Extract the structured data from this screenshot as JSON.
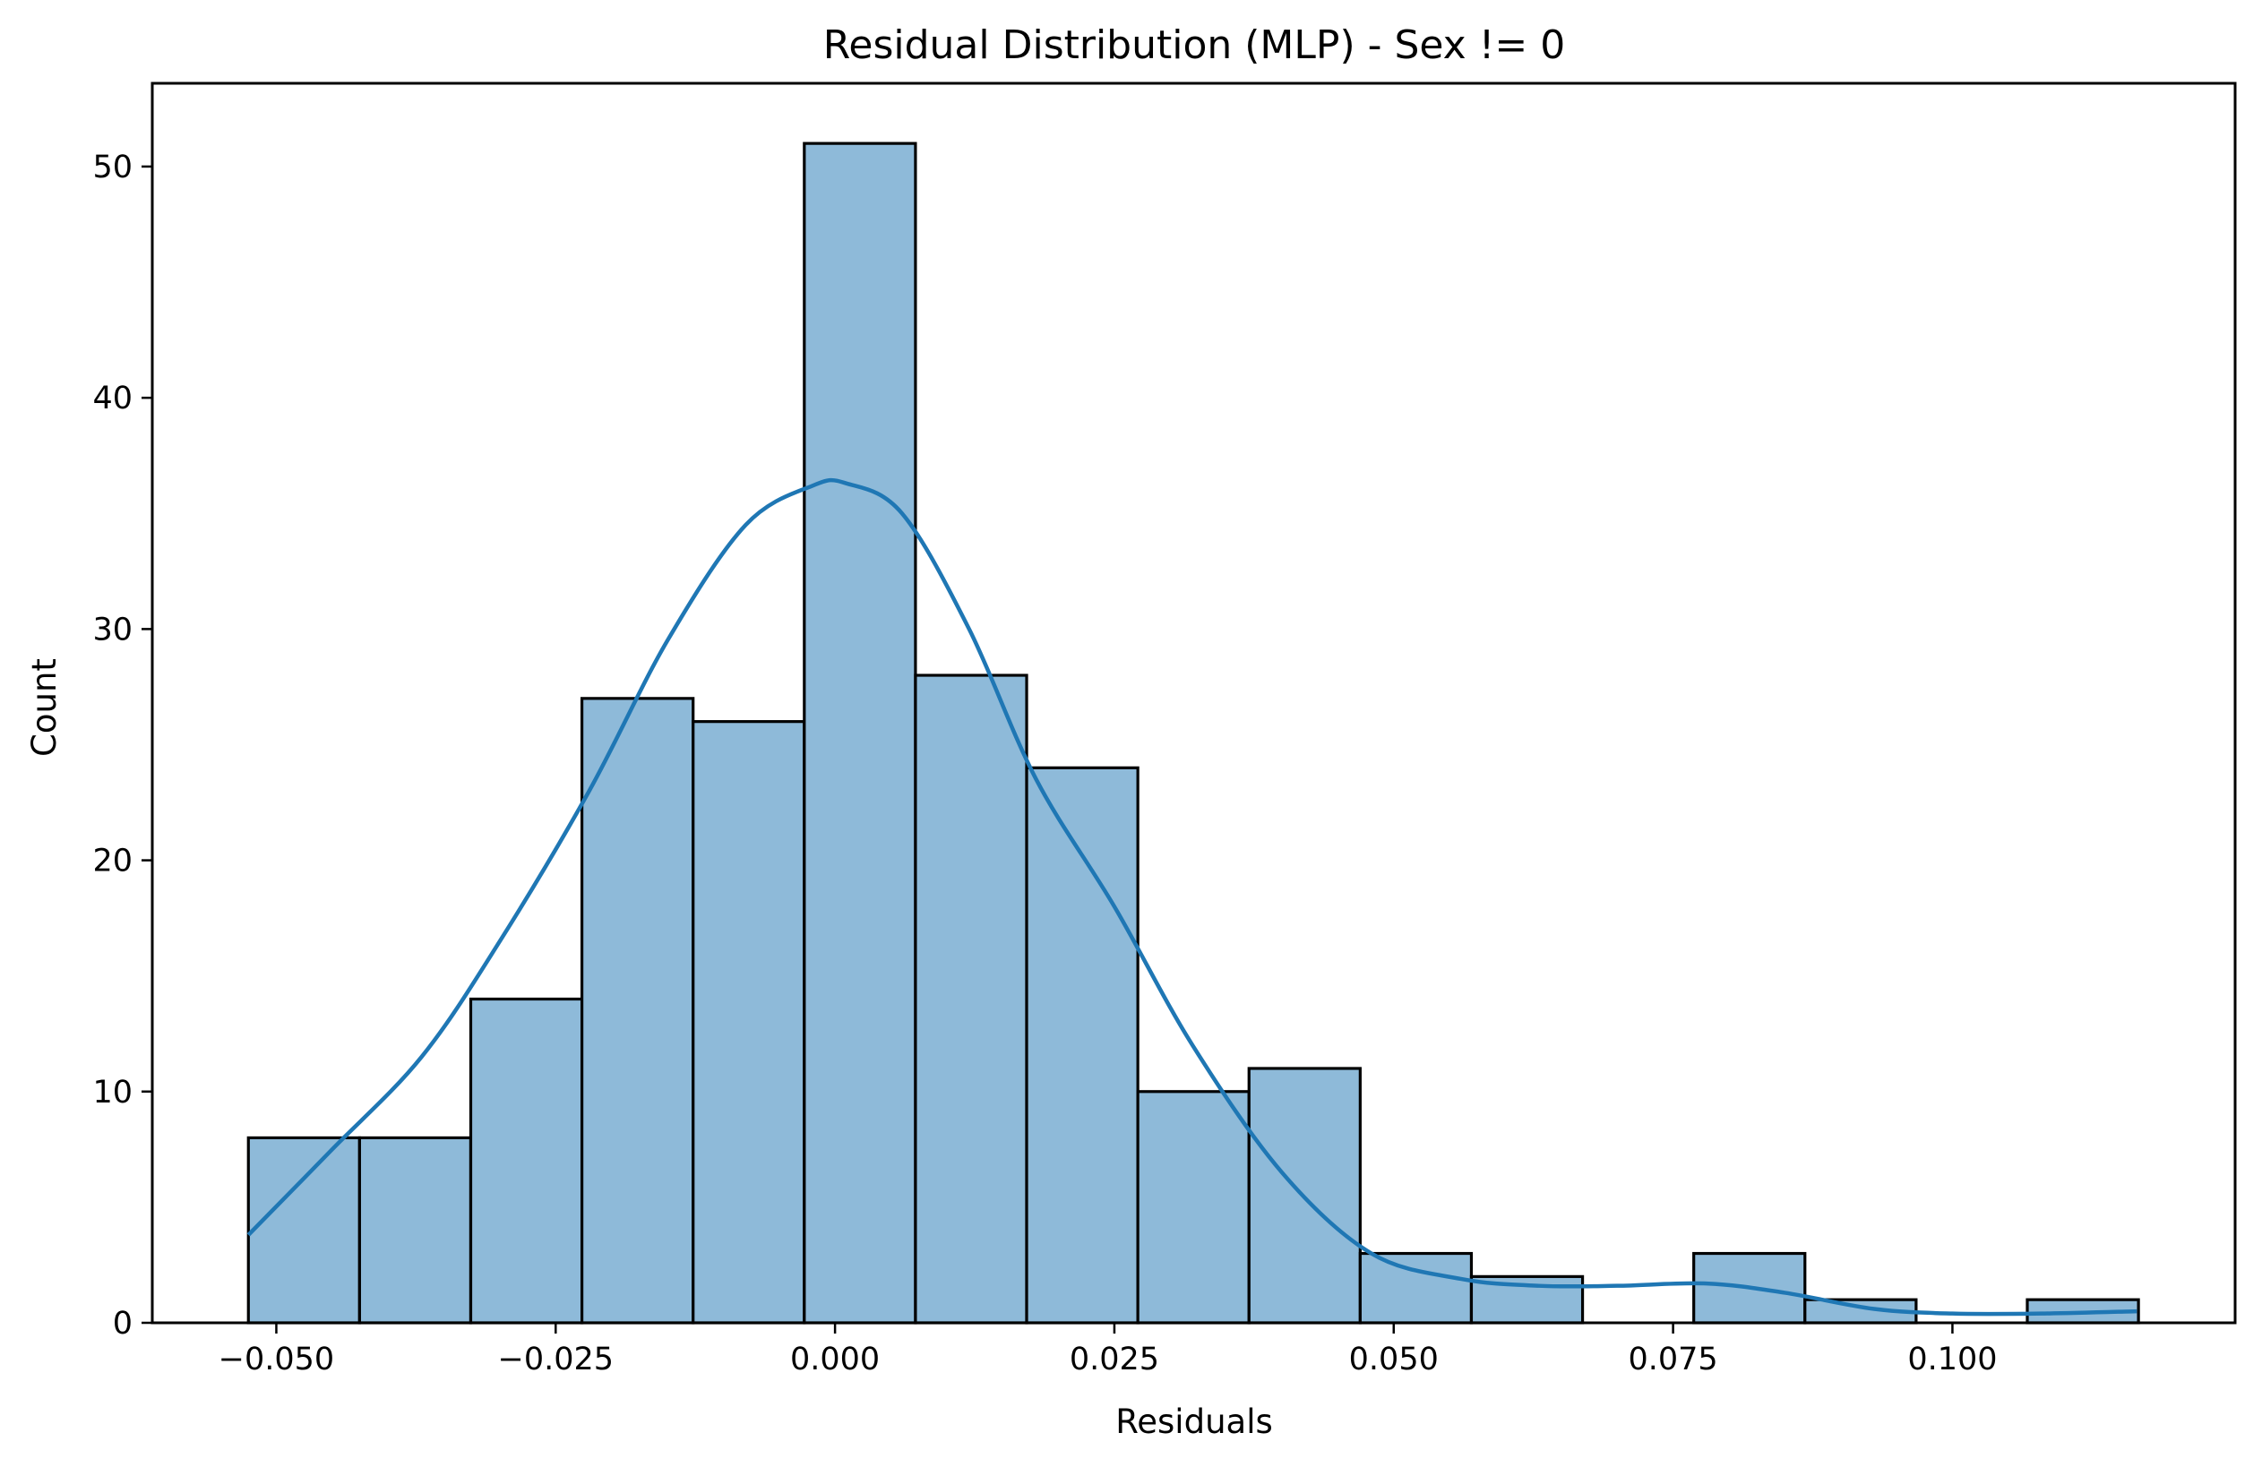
{
  "chart_data": {
    "type": "bar",
    "title": "Residual Distribution (MLP) - Sex != 0",
    "xlabel": "Residuals",
    "ylabel": "Count",
    "xlim": [
      -0.0611,
      0.1253
    ],
    "ylim": [
      0,
      53.6
    ],
    "xticks": [
      -0.05,
      -0.025,
      0.0,
      0.025,
      0.05,
      0.075,
      0.1
    ],
    "xtick_labels": [
      "−0.050",
      "−0.025",
      "0.000",
      "0.025",
      "0.050",
      "0.075",
      "0.100"
    ],
    "yticks": [
      0,
      10,
      20,
      30,
      40,
      50
    ],
    "ytick_labels": [
      "0",
      "10",
      "20",
      "30",
      "40",
      "50"
    ],
    "bins": {
      "start": -0.0525,
      "width": 0.00995,
      "counts": [
        8,
        8,
        14,
        27,
        26,
        51,
        28,
        24,
        10,
        11,
        3,
        2,
        0,
        3,
        1,
        0,
        1
      ]
    },
    "kde": {
      "x": [
        -0.0525,
        -0.045,
        -0.037,
        -0.03,
        -0.022,
        -0.015,
        -0.008,
        -0.002,
        0.001,
        0.006,
        0.012,
        0.018,
        0.025,
        0.032,
        0.04,
        0.048,
        0.056,
        0.063,
        0.07,
        0.078,
        0.085,
        0.093,
        0.1,
        0.108,
        0.1165
      ],
      "y": [
        3.8,
        7.5,
        11.5,
        16.5,
        23.0,
        29.5,
        34.5,
        36.2,
        36.3,
        35.0,
        30.0,
        23.5,
        18.0,
        12.0,
        6.5,
        3.0,
        1.9,
        1.6,
        1.6,
        1.7,
        1.3,
        0.6,
        0.4,
        0.4,
        0.5
      ]
    },
    "grid": false,
    "colors": {
      "bar_fill": "#8ebad9",
      "bar_edge": "#000000",
      "kde_line": "#1f77b4"
    }
  }
}
